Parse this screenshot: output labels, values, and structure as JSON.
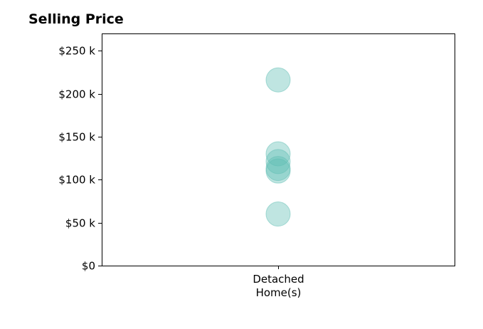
{
  "chart_data": {
    "type": "scatter",
    "title": "Selling Price",
    "xlabel": "",
    "ylabel": "",
    "categories": [
      "Detached\nHome(s)"
    ],
    "y_ticks": [
      0,
      50000,
      100000,
      150000,
      200000,
      250000
    ],
    "y_tick_labels": [
      "$0",
      "$50 k",
      "$100 k",
      "$150 k",
      "$200 k",
      "$250 k"
    ],
    "ylim": [
      0,
      270000
    ],
    "grid": false,
    "marker_color": "#5fbdb3",
    "series": [
      {
        "category": "Detached\nHome(s)",
        "values": [
          216000,
          130000,
          121000,
          113000,
          110000,
          60000
        ]
      }
    ]
  }
}
